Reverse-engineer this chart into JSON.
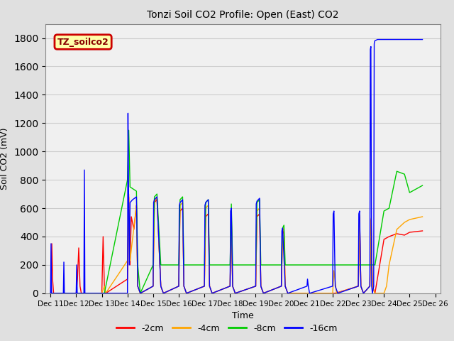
{
  "title": "Tonzi Soil CO2 Profile: Open (East) CO2",
  "xlabel": "Time",
  "ylabel": "Soil CO2 (mV)",
  "ylim": [
    0,
    1900
  ],
  "yticks": [
    0,
    200,
    400,
    600,
    800,
    1000,
    1200,
    1400,
    1600,
    1800
  ],
  "xtick_labels": [
    "Dec 11",
    "Dec 12",
    "Dec 13",
    "Dec 14",
    "Dec 15",
    "Dec 16",
    "Dec 17",
    "Dec 18",
    "Dec 19",
    "Dec 20",
    "Dec 21",
    "Dec 22",
    "Dec 23",
    "Dec 24",
    "Dec 25",
    "Dec 26"
  ],
  "legend_box_label": "TZ_soilco2",
  "legend_entries": [
    "-2cm",
    "-4cm",
    "-8cm",
    "-16cm"
  ],
  "line_colors": [
    "#ff0000",
    "#ffa500",
    "#00cc00",
    "#0000ff"
  ],
  "label_box_facecolor": "#ffffaa",
  "label_box_edgecolor": "#cc0000",
  "label_text_color": "#880000",
  "bg_color": "#e0e0e0",
  "plot_bg_color": "#f0f0f0",
  "grid_color": "#cccccc",
  "series_red": [
    [
      0.0,
      0
    ],
    [
      0.02,
      0
    ],
    [
      0.05,
      350
    ],
    [
      0.08,
      100
    ],
    [
      0.12,
      0
    ],
    [
      1.0,
      0
    ],
    [
      1.05,
      100
    ],
    [
      1.1,
      320
    ],
    [
      1.15,
      50
    ],
    [
      1.2,
      0
    ],
    [
      2.0,
      0
    ],
    [
      2.05,
      400
    ],
    [
      2.1,
      50
    ],
    [
      2.15,
      0
    ],
    [
      3.0,
      100
    ],
    [
      3.05,
      680
    ],
    [
      3.1,
      200
    ],
    [
      3.15,
      540
    ],
    [
      3.25,
      450
    ],
    [
      3.35,
      620
    ],
    [
      3.4,
      50
    ],
    [
      3.5,
      0
    ],
    [
      4.0,
      50
    ],
    [
      4.05,
      640
    ],
    [
      4.15,
      660
    ],
    [
      4.3,
      50
    ],
    [
      4.4,
      0
    ],
    [
      5.0,
      50
    ],
    [
      5.05,
      580
    ],
    [
      5.15,
      600
    ],
    [
      5.2,
      50
    ],
    [
      5.3,
      0
    ],
    [
      6.0,
      50
    ],
    [
      6.05,
      540
    ],
    [
      6.15,
      560
    ],
    [
      6.2,
      50
    ],
    [
      6.3,
      0
    ],
    [
      7.0,
      50
    ],
    [
      7.05,
      530
    ],
    [
      7.1,
      50
    ],
    [
      7.2,
      0
    ],
    [
      8.0,
      50
    ],
    [
      8.05,
      540
    ],
    [
      8.15,
      560
    ],
    [
      8.2,
      50
    ],
    [
      8.3,
      0
    ],
    [
      9.0,
      50
    ],
    [
      9.05,
      420
    ],
    [
      9.1,
      440
    ],
    [
      9.15,
      50
    ],
    [
      9.25,
      0
    ],
    [
      10.0,
      0
    ],
    [
      10.1,
      0
    ],
    [
      11.0,
      0
    ],
    [
      11.1,
      0
    ],
    [
      12.0,
      50
    ],
    [
      12.05,
      540
    ],
    [
      12.1,
      50
    ],
    [
      12.2,
      0
    ],
    [
      12.45,
      50
    ],
    [
      12.5,
      520
    ],
    [
      12.55,
      50
    ],
    [
      12.65,
      0
    ],
    [
      13.0,
      380
    ],
    [
      13.2,
      400
    ],
    [
      13.5,
      420
    ],
    [
      13.8,
      410
    ],
    [
      14.0,
      430
    ],
    [
      14.5,
      440
    ]
  ],
  "series_orange": [
    [
      0.0,
      0
    ],
    [
      0.12,
      0
    ],
    [
      1.0,
      0
    ],
    [
      1.2,
      0
    ],
    [
      2.0,
      0
    ],
    [
      2.1,
      50
    ],
    [
      2.15,
      0
    ],
    [
      3.0,
      230
    ],
    [
      3.05,
      700
    ],
    [
      3.1,
      230
    ],
    [
      3.35,
      620
    ],
    [
      3.4,
      50
    ],
    [
      3.5,
      0
    ],
    [
      4.0,
      50
    ],
    [
      4.05,
      650
    ],
    [
      4.15,
      670
    ],
    [
      4.3,
      50
    ],
    [
      4.4,
      0
    ],
    [
      5.0,
      50
    ],
    [
      5.05,
      620
    ],
    [
      5.15,
      640
    ],
    [
      5.2,
      50
    ],
    [
      5.3,
      0
    ],
    [
      6.0,
      50
    ],
    [
      6.05,
      600
    ],
    [
      6.15,
      620
    ],
    [
      6.2,
      50
    ],
    [
      6.3,
      0
    ],
    [
      7.0,
      50
    ],
    [
      7.05,
      570
    ],
    [
      7.1,
      50
    ],
    [
      7.2,
      0
    ],
    [
      8.0,
      50
    ],
    [
      8.05,
      580
    ],
    [
      8.15,
      600
    ],
    [
      8.2,
      50
    ],
    [
      8.3,
      0
    ],
    [
      9.0,
      50
    ],
    [
      9.05,
      440
    ],
    [
      9.1,
      460
    ],
    [
      9.15,
      50
    ],
    [
      9.25,
      0
    ],
    [
      10.0,
      0
    ],
    [
      10.1,
      0
    ],
    [
      11.0,
      0
    ],
    [
      11.05,
      160
    ],
    [
      11.15,
      0
    ],
    [
      12.0,
      50
    ],
    [
      12.05,
      550
    ],
    [
      12.1,
      50
    ],
    [
      12.2,
      0
    ],
    [
      12.45,
      50
    ],
    [
      12.5,
      530
    ],
    [
      12.55,
      50
    ],
    [
      12.65,
      0
    ],
    [
      13.0,
      0
    ],
    [
      13.1,
      50
    ],
    [
      13.2,
      200
    ],
    [
      13.5,
      450
    ],
    [
      13.8,
      500
    ],
    [
      14.0,
      520
    ],
    [
      14.5,
      540
    ]
  ],
  "series_green": [
    [
      0.0,
      0
    ],
    [
      0.12,
      0
    ],
    [
      1.0,
      0
    ],
    [
      1.2,
      0
    ],
    [
      2.0,
      0
    ],
    [
      2.1,
      0
    ],
    [
      3.0,
      800
    ],
    [
      3.05,
      1150
    ],
    [
      3.1,
      750
    ],
    [
      3.35,
      720
    ],
    [
      3.4,
      200
    ],
    [
      3.5,
      0
    ],
    [
      4.0,
      200
    ],
    [
      4.05,
      680
    ],
    [
      4.15,
      700
    ],
    [
      4.3,
      200
    ],
    [
      4.4,
      200
    ],
    [
      5.0,
      200
    ],
    [
      5.05,
      660
    ],
    [
      5.15,
      680
    ],
    [
      5.2,
      200
    ],
    [
      5.3,
      200
    ],
    [
      6.0,
      200
    ],
    [
      6.05,
      640
    ],
    [
      6.15,
      660
    ],
    [
      6.2,
      200
    ],
    [
      6.3,
      200
    ],
    [
      7.0,
      200
    ],
    [
      7.05,
      630
    ],
    [
      7.1,
      200
    ],
    [
      7.2,
      200
    ],
    [
      8.0,
      200
    ],
    [
      8.05,
      640
    ],
    [
      8.15,
      660
    ],
    [
      8.2,
      200
    ],
    [
      8.3,
      200
    ],
    [
      9.0,
      200
    ],
    [
      9.05,
      460
    ],
    [
      9.1,
      480
    ],
    [
      9.15,
      200
    ],
    [
      9.25,
      200
    ],
    [
      10.0,
      200
    ],
    [
      10.1,
      200
    ],
    [
      11.0,
      200
    ],
    [
      11.05,
      200
    ],
    [
      11.15,
      200
    ],
    [
      12.0,
      200
    ],
    [
      12.05,
      200
    ],
    [
      12.1,
      200
    ],
    [
      12.2,
      200
    ],
    [
      12.45,
      200
    ],
    [
      12.5,
      200
    ],
    [
      12.55,
      200
    ],
    [
      12.65,
      200
    ],
    [
      13.0,
      580
    ],
    [
      13.2,
      600
    ],
    [
      13.5,
      860
    ],
    [
      13.8,
      840
    ],
    [
      14.0,
      710
    ],
    [
      14.5,
      760
    ]
  ],
  "series_blue": [
    [
      0.0,
      0
    ],
    [
      0.02,
      350
    ],
    [
      0.04,
      0
    ],
    [
      0.5,
      0
    ],
    [
      0.52,
      220
    ],
    [
      0.54,
      0
    ],
    [
      1.0,
      0
    ],
    [
      1.02,
      200
    ],
    [
      1.04,
      0
    ],
    [
      1.3,
      0
    ],
    [
      1.32,
      870
    ],
    [
      1.34,
      0
    ],
    [
      2.0,
      0
    ],
    [
      2.05,
      0
    ],
    [
      3.0,
      0
    ],
    [
      3.02,
      1270
    ],
    [
      3.04,
      800
    ],
    [
      3.07,
      200
    ],
    [
      3.1,
      640
    ],
    [
      3.2,
      660
    ],
    [
      3.35,
      680
    ],
    [
      3.4,
      50
    ],
    [
      3.5,
      0
    ],
    [
      4.0,
      50
    ],
    [
      4.02,
      640
    ],
    [
      4.05,
      660
    ],
    [
      4.15,
      680
    ],
    [
      4.3,
      50
    ],
    [
      4.4,
      0
    ],
    [
      5.0,
      50
    ],
    [
      5.02,
      620
    ],
    [
      5.05,
      640
    ],
    [
      5.15,
      660
    ],
    [
      5.2,
      50
    ],
    [
      5.3,
      0
    ],
    [
      6.0,
      50
    ],
    [
      6.02,
      620
    ],
    [
      6.05,
      640
    ],
    [
      6.15,
      660
    ],
    [
      6.2,
      50
    ],
    [
      6.3,
      0
    ],
    [
      7.0,
      50
    ],
    [
      7.02,
      580
    ],
    [
      7.05,
      600
    ],
    [
      7.1,
      50
    ],
    [
      7.2,
      0
    ],
    [
      8.0,
      50
    ],
    [
      8.02,
      630
    ],
    [
      8.05,
      650
    ],
    [
      8.15,
      670
    ],
    [
      8.2,
      50
    ],
    [
      8.3,
      0
    ],
    [
      9.0,
      50
    ],
    [
      9.02,
      440
    ],
    [
      9.05,
      460
    ],
    [
      9.15,
      50
    ],
    [
      9.25,
      0
    ],
    [
      10.0,
      50
    ],
    [
      10.02,
      100
    ],
    [
      10.05,
      50
    ],
    [
      10.1,
      0
    ],
    [
      11.0,
      50
    ],
    [
      11.02,
      560
    ],
    [
      11.05,
      580
    ],
    [
      11.1,
      50
    ],
    [
      11.2,
      0
    ],
    [
      12.0,
      50
    ],
    [
      12.02,
      560
    ],
    [
      12.05,
      580
    ],
    [
      12.1,
      50
    ],
    [
      12.2,
      0
    ],
    [
      12.45,
      50
    ],
    [
      12.47,
      1720
    ],
    [
      12.49,
      1740
    ],
    [
      12.52,
      50
    ],
    [
      12.55,
      0
    ],
    [
      12.6,
      50
    ],
    [
      12.62,
      1760
    ],
    [
      12.64,
      1780
    ],
    [
      12.75,
      1790
    ],
    [
      12.9,
      1790
    ],
    [
      13.0,
      1790
    ],
    [
      14.0,
      1790
    ],
    [
      14.5,
      1790
    ]
  ]
}
